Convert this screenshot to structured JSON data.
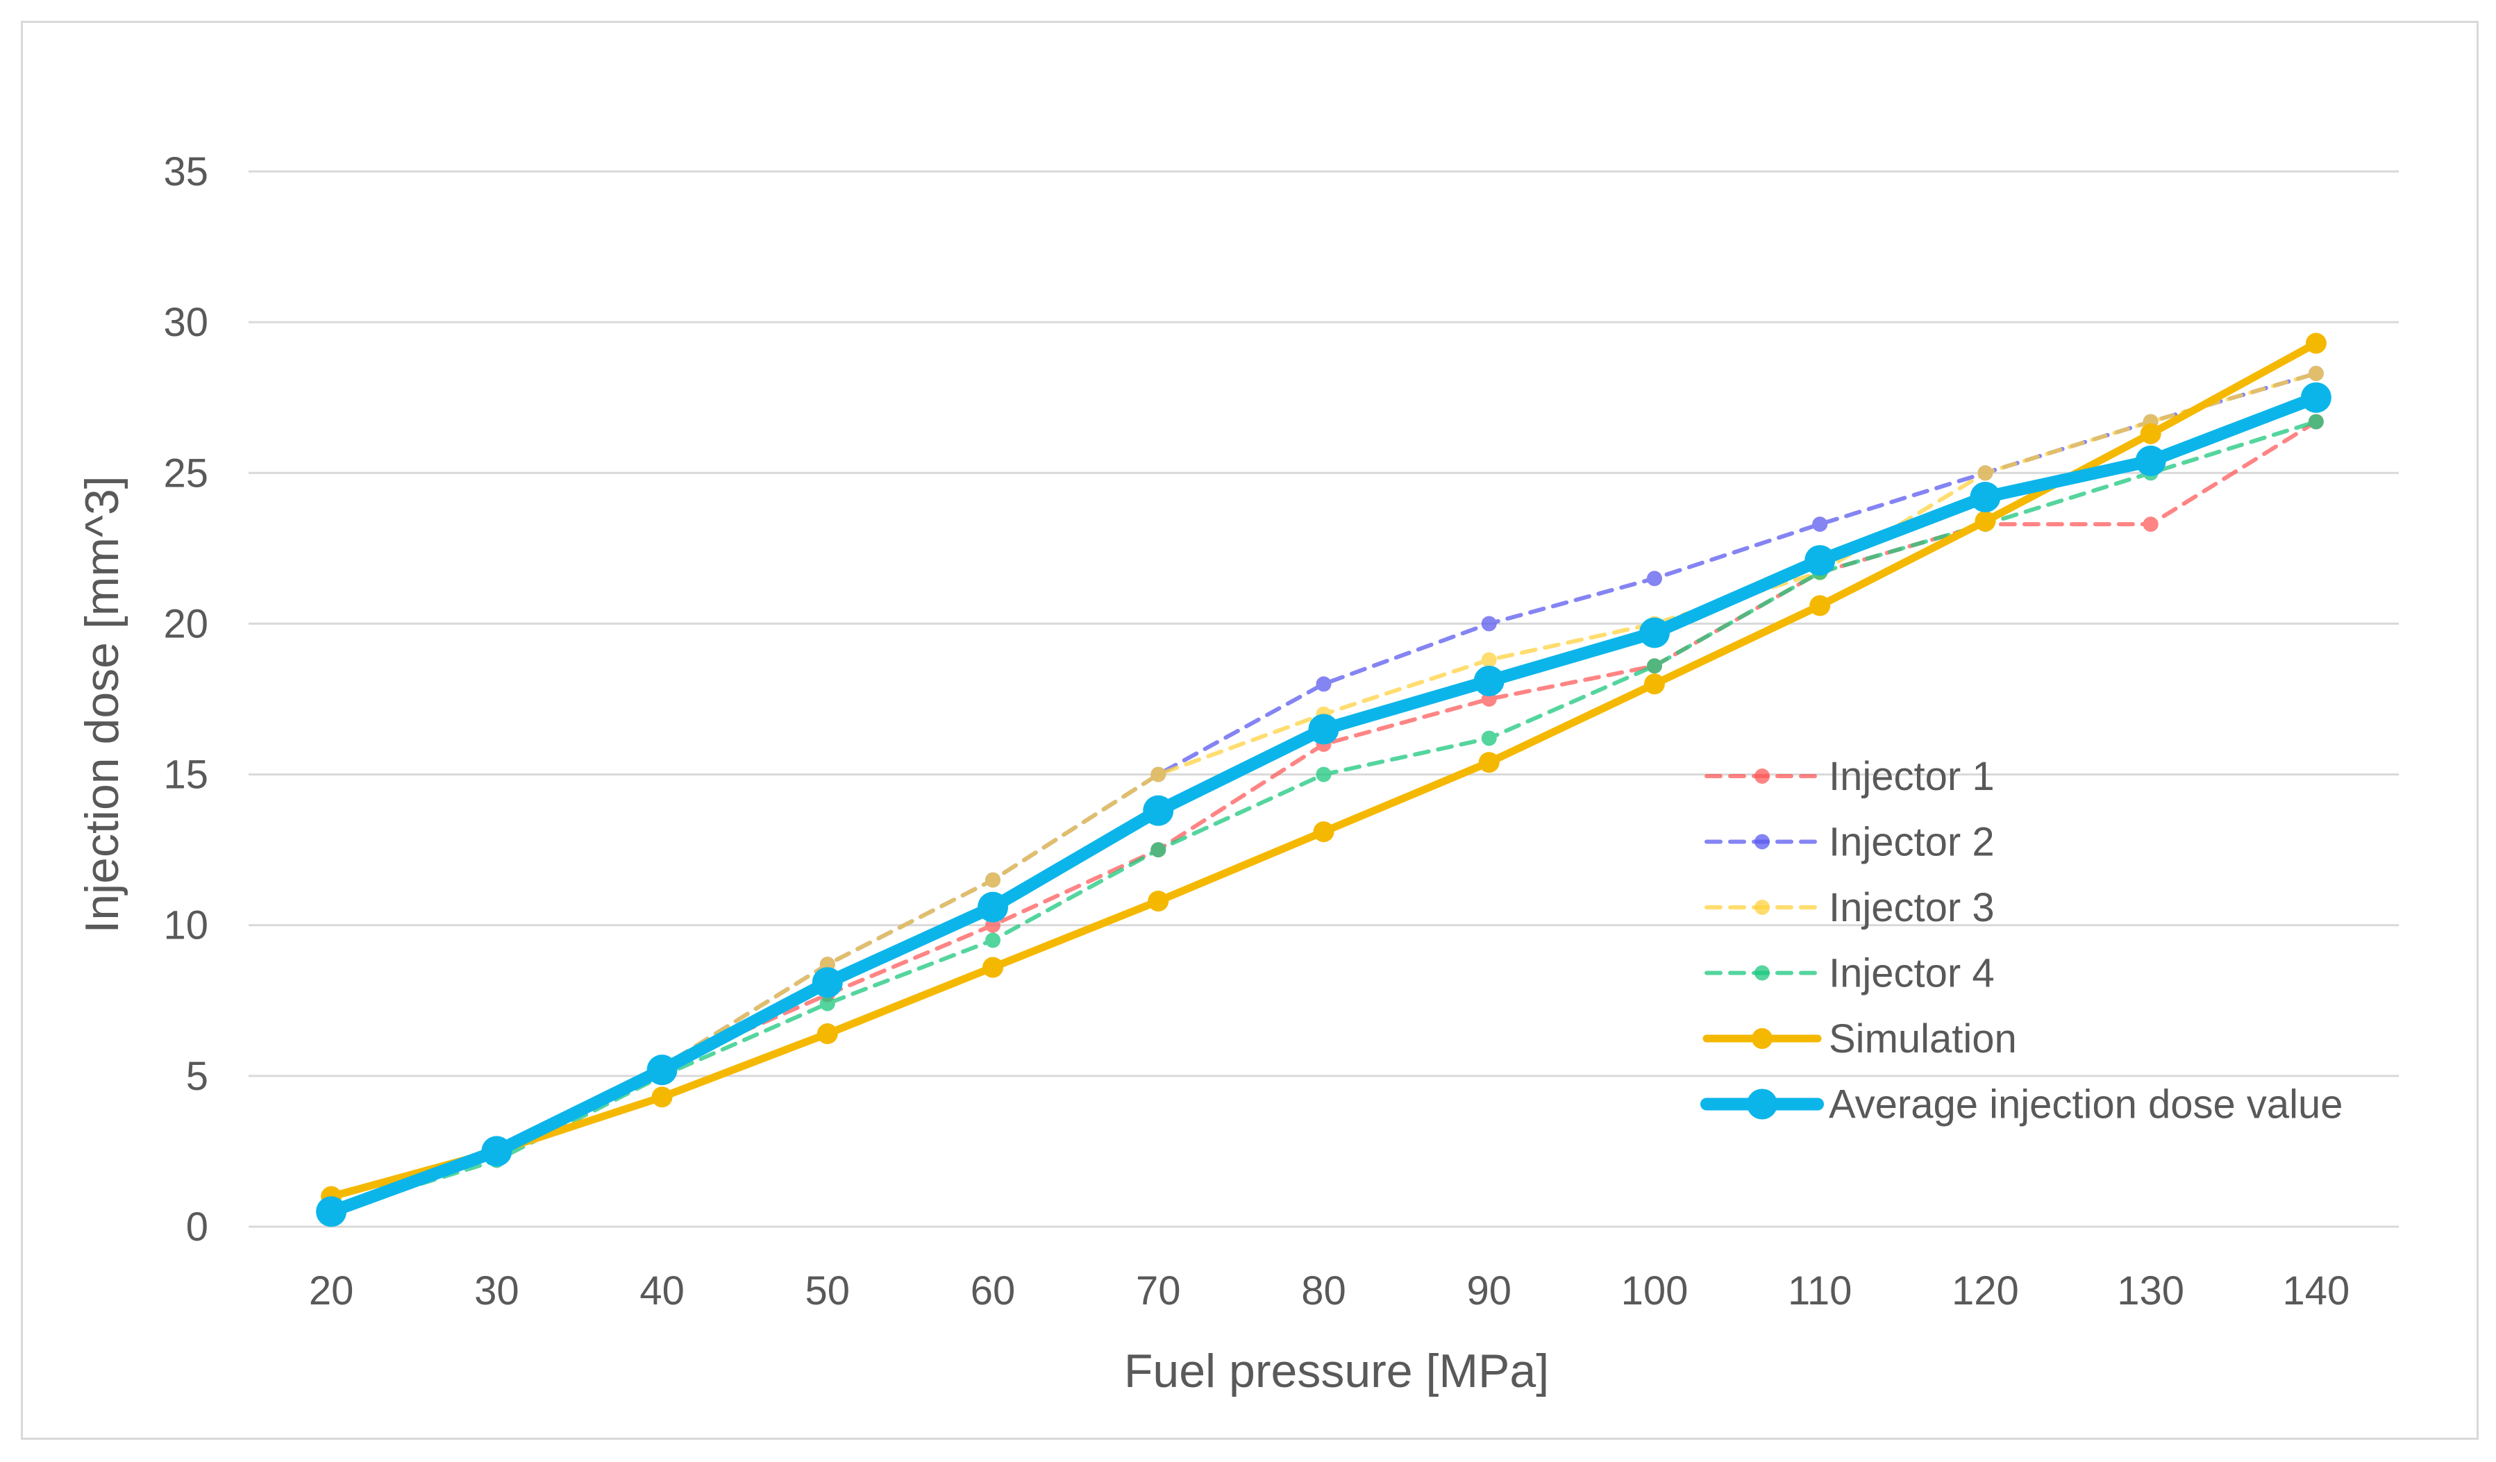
{
  "chart_data": {
    "type": "line",
    "title": "",
    "xlabel": "Fuel pressure [MPa]",
    "ylabel": "Injection dose [mm^3]",
    "categories": [
      "20",
      "30",
      "40",
      "50",
      "60",
      "70",
      "80",
      "90",
      "100",
      "110",
      "120",
      "130",
      "140"
    ],
    "ylim": [
      0,
      35
    ],
    "yticks": [
      0,
      5,
      10,
      15,
      20,
      25,
      30,
      35
    ],
    "grid": true,
    "legend_position": "right",
    "series": [
      {
        "name": "Injector 1",
        "style": "dashed",
        "color": "#ff5b5b",
        "values": [
          0.5,
          2.5,
          5.3,
          7.7,
          10.0,
          12.5,
          16.0,
          17.5,
          18.6,
          21.7,
          23.3,
          23.3,
          26.7
        ]
      },
      {
        "name": "Injector 2",
        "style": "dashed",
        "color": "#5b5bf0",
        "values": [
          0.5,
          2.5,
          5.3,
          8.7,
          11.5,
          15.0,
          18.0,
          20.0,
          21.5,
          23.3,
          25.0,
          26.7,
          28.3
        ]
      },
      {
        "name": "Injector 3",
        "style": "dashed",
        "color": "#ffd23f",
        "values": [
          0.5,
          2.5,
          5.3,
          8.7,
          11.5,
          15.0,
          17.0,
          18.8,
          20.0,
          21.7,
          25.0,
          26.7,
          28.3
        ]
      },
      {
        "name": "Injector 4",
        "style": "dashed",
        "color": "#1cc77e",
        "values": [
          0.5,
          2.2,
          5.0,
          7.4,
          9.5,
          12.5,
          15.0,
          16.2,
          18.6,
          21.7,
          23.3,
          25.0,
          26.7
        ]
      },
      {
        "name": "Simulation",
        "style": "solid",
        "color": "#f5b800",
        "values": [
          1.0,
          2.5,
          4.3,
          6.4,
          8.6,
          10.8,
          13.1,
          15.4,
          18.0,
          20.6,
          23.4,
          26.3,
          29.3
        ]
      },
      {
        "name": "Average injection dose value",
        "style": "solid-thick",
        "color": "#0bb5ea",
        "values": [
          0.5,
          2.5,
          5.2,
          8.1,
          10.6,
          13.8,
          16.5,
          18.1,
          19.7,
          22.1,
          24.2,
          25.4,
          27.5
        ]
      }
    ]
  }
}
